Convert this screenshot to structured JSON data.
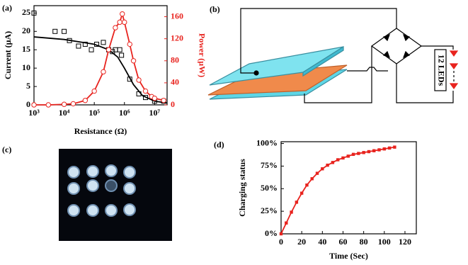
{
  "panels": [
    "(a)",
    "(b)",
    "(c)",
    "(d)"
  ],
  "diagram": {
    "label": "12 LEDs"
  },
  "chart_data": [
    {
      "type": "scatter",
      "xlabel": "Resistance (Ω)",
      "ylabel": "Current (μA)",
      "y2label": "Power (μW)",
      "xlog": true,
      "xlim": [
        1000,
        26000000
      ],
      "xticks": [
        {
          "value": 1000,
          "label": "10³"
        },
        {
          "value": 10000,
          "label": "10⁴"
        },
        {
          "value": 100000,
          "label": "10⁵"
        },
        {
          "value": 1000000,
          "label": "10⁶"
        },
        {
          "value": 10000000,
          "label": "10⁷"
        }
      ],
      "ylim": [
        0,
        27
      ],
      "yticks": [
        0,
        5,
        10,
        15,
        20,
        25
      ],
      "y2lim": [
        0,
        180
      ],
      "y2ticks": [
        0,
        40,
        80,
        120,
        160
      ],
      "y2_color": "#e8231e",
      "series": [
        {
          "color": "#000000",
          "marker": "square",
          "line": false,
          "x": [
            1000,
            5000,
            10000,
            15000,
            30000,
            50000,
            80000,
            120000,
            200000,
            300000,
            400000,
            500000,
            700000,
            800000,
            1500000,
            3000000,
            5000000,
            10000000,
            20000000
          ],
          "values": [
            25,
            20,
            20,
            17.5,
            16,
            16.5,
            15,
            16.5,
            17,
            15,
            14.5,
            15,
            15,
            13.5,
            7,
            3,
            2,
            1,
            1
          ]
        },
        {
          "color": "#000000",
          "marker": null,
          "line": true,
          "x": [
            1000,
            10000,
            100000,
            300000,
            600000,
            1000000,
            2000000,
            4000000,
            10000000,
            26000000
          ],
          "values": [
            18.5,
            17.8,
            16.5,
            15,
            13,
            10,
            5.5,
            2.5,
            1,
            0.5
          ]
        },
        {
          "color": "#e8231e",
          "marker": "circle",
          "line": true,
          "axis": "y2",
          "x": [
            1000,
            3000,
            10000,
            20000,
            50000,
            100000,
            200000,
            300000,
            500000,
            700000,
            850000,
            1000000,
            1500000,
            2000000,
            3000000,
            5000000,
            8000000,
            10000000,
            20000000
          ],
          "values": [
            0,
            0,
            1,
            2,
            8,
            25,
            60,
            100,
            140,
            150,
            165,
            150,
            110,
            80,
            45,
            25,
            15,
            12,
            8
          ]
        }
      ]
    },
    {
      "type": "line",
      "xlabel": "Time (Sec)",
      "ylabel": "Charging status",
      "xlim": [
        0,
        131
      ],
      "xticks": [
        0,
        20,
        40,
        60,
        80,
        100,
        120
      ],
      "ylim": [
        0,
        102
      ],
      "yticks": [
        {
          "value": 0,
          "label": "0%"
        },
        {
          "value": 25,
          "label": "25%"
        },
        {
          "value": 50,
          "label": "50%"
        },
        {
          "value": 75,
          "label": "75%"
        },
        {
          "value": 100,
          "label": "100%"
        }
      ],
      "series": [
        {
          "color": "#e8231e",
          "marker": "square",
          "line": true,
          "x": [
            0,
            5,
            10,
            15,
            20,
            25,
            30,
            35,
            40,
            45,
            50,
            55,
            60,
            65,
            70,
            75,
            80,
            85,
            90,
            95,
            100,
            105,
            110
          ],
          "values": [
            0,
            12,
            24,
            35,
            45,
            54,
            61,
            67,
            72,
            76,
            79,
            82,
            84,
            86,
            88,
            89,
            90,
            91,
            92,
            93,
            94,
            95,
            96
          ]
        }
      ]
    }
  ]
}
